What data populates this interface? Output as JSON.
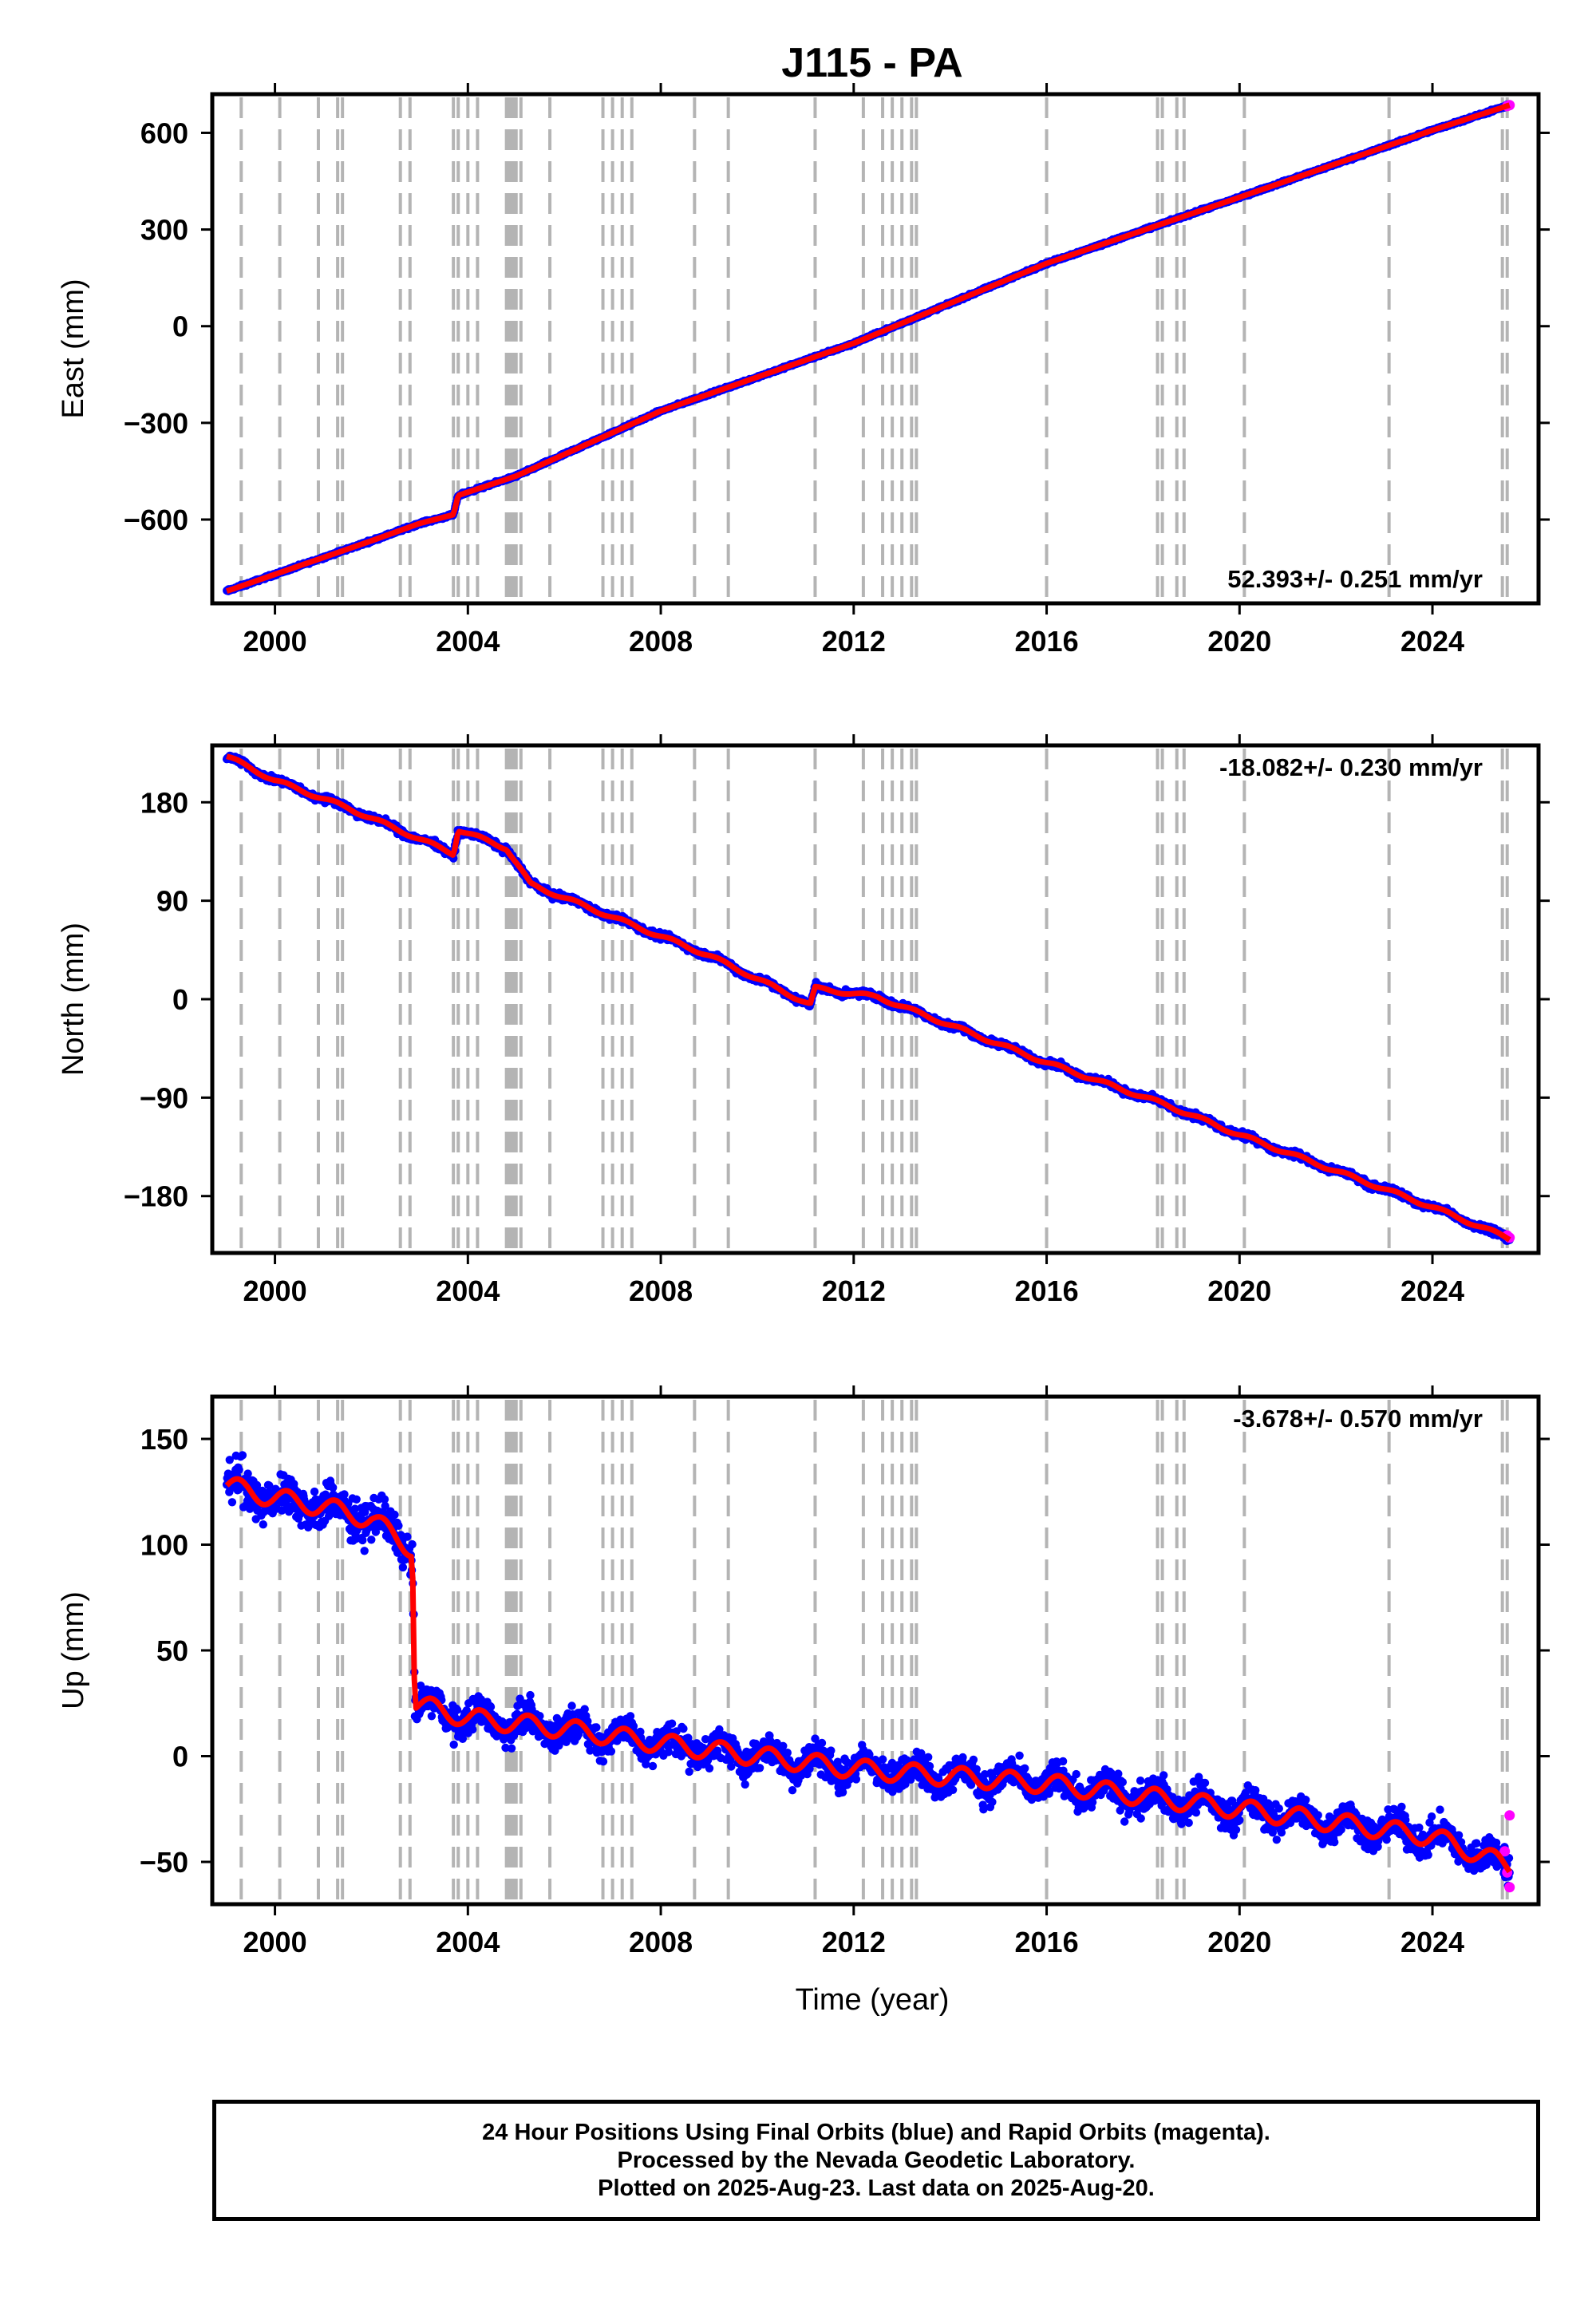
{
  "title": "J115 - PA",
  "x_axis_label": "Time (year)",
  "colors": {
    "final": "#0000ff",
    "rapid": "#ff00ff",
    "model": "#ff0000",
    "steps": "#b4b4b4"
  },
  "footer": [
    "24 Hour Positions Using Final Orbits (blue) and Rapid Orbits (magenta).",
    "Processed by the Nevada Geodetic Laboratory.",
    "Plotted on 2025-Aug-23. Last data on 2025-Aug-20."
  ],
  "chart_data": [
    {
      "type": "scatter",
      "component": "east",
      "ylabel": "East (mm)",
      "rate_label": "52.393+/- 0.251 mm/yr",
      "xlim": [
        1998.7,
        2026.2
      ],
      "ylim": [
        -860,
        720
      ],
      "xticks": [
        2000,
        2004,
        2008,
        2012,
        2016,
        2020,
        2024
      ],
      "yticks": [
        -600,
        -300,
        0,
        300,
        600
      ],
      "ytick_labels": [
        "−600",
        "−300",
        "0",
        "300",
        "600"
      ],
      "series_points": [
        {
          "x": 1999.0,
          "y": -822
        },
        {
          "x": 2000.0,
          "y": -770
        },
        {
          "x": 2001.0,
          "y": -718
        },
        {
          "x": 2002.0,
          "y": -666
        },
        {
          "x": 2003.0,
          "y": -612
        },
        {
          "x": 2003.7,
          "y": -585
        },
        {
          "x": 2003.8,
          "y": -525
        },
        {
          "x": 2005.0,
          "y": -465
        },
        {
          "x": 2008.0,
          "y": -263
        },
        {
          "x": 2012.0,
          "y": -53
        },
        {
          "x": 2016.0,
          "y": 195
        },
        {
          "x": 2020.0,
          "y": 400
        },
        {
          "x": 2024.0,
          "y": 608
        },
        {
          "x": 2025.6,
          "y": 686
        }
      ],
      "rapid_points": [
        {
          "x": 2025.55,
          "y": 683
        },
        {
          "x": 2025.6,
          "y": 686
        }
      ]
    },
    {
      "type": "scatter",
      "component": "north",
      "ylabel": "North (mm)",
      "rate_label": "-18.082+/- 0.230 mm/yr",
      "xlim": [
        1998.7,
        2026.2
      ],
      "ylim": [
        -232,
        232
      ],
      "xticks": [
        2000,
        2004,
        2008,
        2012,
        2016,
        2020,
        2024
      ],
      "yticks": [
        -180,
        -90,
        0,
        90,
        180
      ],
      "ytick_labels": [
        "−180",
        "−90",
        "0",
        "90",
        "180"
      ],
      "series_points": [
        {
          "x": 1999.0,
          "y": 222
        },
        {
          "x": 2000.0,
          "y": 200
        },
        {
          "x": 2001.5,
          "y": 175
        },
        {
          "x": 2003.7,
          "y": 133
        },
        {
          "x": 2003.8,
          "y": 155
        },
        {
          "x": 2004.8,
          "y": 138
        },
        {
          "x": 2005.3,
          "y": 105
        },
        {
          "x": 2007.0,
          "y": 75
        },
        {
          "x": 2009.0,
          "y": 40
        },
        {
          "x": 2011.1,
          "y": -5
        },
        {
          "x": 2011.2,
          "y": 10
        },
        {
          "x": 2012.5,
          "y": 2
        },
        {
          "x": 2016.0,
          "y": -58
        },
        {
          "x": 2018.5,
          "y": -97
        },
        {
          "x": 2020.0,
          "y": -124
        },
        {
          "x": 2024.0,
          "y": -190
        },
        {
          "x": 2025.6,
          "y": -219
        }
      ],
      "rapid_points": [
        {
          "x": 2025.55,
          "y": -216
        },
        {
          "x": 2025.6,
          "y": -218
        }
      ]
    },
    {
      "type": "scatter",
      "component": "up",
      "ylabel": "Up (mm)",
      "rate_label": "-3.678+/- 0.570 mm/yr",
      "xlim": [
        1998.7,
        2026.2
      ],
      "ylim": [
        -70,
        170
      ],
      "xticks": [
        2000,
        2004,
        2008,
        2012,
        2016,
        2020,
        2024
      ],
      "yticks": [
        -50,
        0,
        50,
        100,
        150
      ],
      "ytick_labels": [
        "−50",
        "0",
        "50",
        "100",
        "150"
      ],
      "series_points": [
        {
          "x": 1999.0,
          "y": 128
        },
        {
          "x": 2000.0,
          "y": 122
        },
        {
          "x": 2001.0,
          "y": 118
        },
        {
          "x": 2002.0,
          "y": 112
        },
        {
          "x": 2002.85,
          "y": 98
        },
        {
          "x": 2002.9,
          "y": 25
        },
        {
          "x": 2004.0,
          "y": 18
        },
        {
          "x": 2006.0,
          "y": 13
        },
        {
          "x": 2008.0,
          "y": 6
        },
        {
          "x": 2012.0,
          "y": -6
        },
        {
          "x": 2016.0,
          "y": -13
        },
        {
          "x": 2020.0,
          "y": -25
        },
        {
          "x": 2024.0,
          "y": -38
        },
        {
          "x": 2025.6,
          "y": -52
        }
      ],
      "rapid_points": [
        {
          "x": 2025.5,
          "y": -45
        },
        {
          "x": 2025.55,
          "y": -55
        },
        {
          "x": 2025.6,
          "y": -28
        },
        {
          "x": 2025.6,
          "y": -62
        }
      ]
    }
  ]
}
